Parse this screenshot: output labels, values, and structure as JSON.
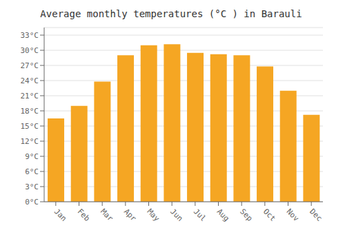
{
  "chart_data": {
    "type": "bar",
    "title": "Average monthly temperatures (°C ) in Barauli",
    "categories": [
      "Jan",
      "Feb",
      "Mar",
      "Apr",
      "May",
      "Jun",
      "Jul",
      "Aug",
      "Sep",
      "Oct",
      "Nov",
      "Dec"
    ],
    "values": [
      16.5,
      19.0,
      23.8,
      29.0,
      31.0,
      31.2,
      29.5,
      29.2,
      29.0,
      26.8,
      22.0,
      17.2
    ],
    "color": "#F5A623",
    "ylim": [
      0,
      34.5
    ],
    "yticks": [
      {
        "value": 0,
        "label": "0°C"
      },
      {
        "value": 3,
        "label": "3°C"
      },
      {
        "value": 6,
        "label": "6°C"
      },
      {
        "value": 9,
        "label": "9°C"
      },
      {
        "value": 12,
        "label": "12°C"
      },
      {
        "value": 15,
        "label": "15°C"
      },
      {
        "value": 18,
        "label": "18°C"
      },
      {
        "value": 21,
        "label": "21°C"
      },
      {
        "value": 24,
        "label": "24°C"
      },
      {
        "value": 27,
        "label": "27°C"
      },
      {
        "value": 30,
        "label": "30°C"
      },
      {
        "value": 33,
        "label": "33°C"
      }
    ],
    "grid": true
  }
}
